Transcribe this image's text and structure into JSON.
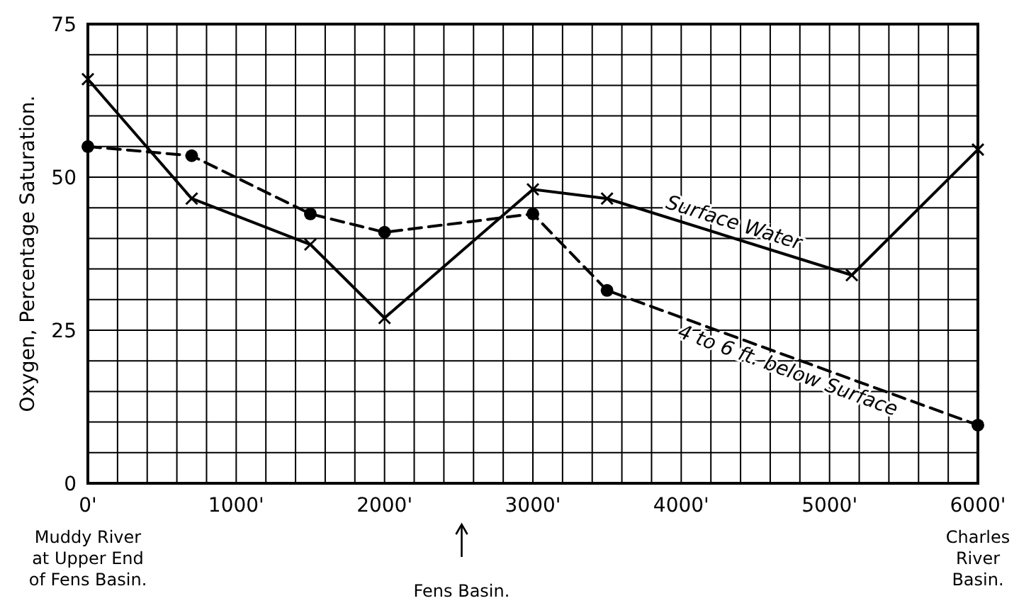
{
  "chart_data": {
    "type": "line",
    "ylabel": "Oxygen, Percentage Saturation.",
    "xlim": [
      0,
      6000
    ],
    "ylim": [
      0,
      75
    ],
    "xticks": [
      {
        "value": 0,
        "label": "0'"
      },
      {
        "value": 200,
        "label": null
      },
      {
        "value": 400,
        "label": null
      },
      {
        "value": 600,
        "label": null
      },
      {
        "value": 800,
        "label": null
      },
      {
        "value": 1000,
        "label": "1000'"
      },
      {
        "value": 1200,
        "label": null
      },
      {
        "value": 1400,
        "label": null
      },
      {
        "value": 1600,
        "label": null
      },
      {
        "value": 1800,
        "label": null
      },
      {
        "value": 2000,
        "label": "2000'"
      },
      {
        "value": 2200,
        "label": null
      },
      {
        "value": 2400,
        "label": null
      },
      {
        "value": 2600,
        "label": null
      },
      {
        "value": 2800,
        "label": null
      },
      {
        "value": 3000,
        "label": "3000'"
      },
      {
        "value": 3200,
        "label": null
      },
      {
        "value": 3400,
        "label": null
      },
      {
        "value": 3600,
        "label": null
      },
      {
        "value": 3800,
        "label": null
      },
      {
        "value": 4000,
        "label": "4000'"
      },
      {
        "value": 4200,
        "label": null
      },
      {
        "value": 4400,
        "label": null
      },
      {
        "value": 4600,
        "label": null
      },
      {
        "value": 4800,
        "label": null
      },
      {
        "value": 5000,
        "label": "5000'"
      },
      {
        "value": 5200,
        "label": null
      },
      {
        "value": 5400,
        "label": null
      },
      {
        "value": 5600,
        "label": null
      },
      {
        "value": 5800,
        "label": null
      },
      {
        "value": 6000,
        "label": "6000'"
      }
    ],
    "yticks": [
      0,
      {
        "value": 5,
        "label": null
      },
      {
        "value": 10,
        "label": null
      },
      {
        "value": 15,
        "label": null
      },
      {
        "value": 20,
        "label": null
      },
      25,
      {
        "value": 30,
        "label": null
      },
      {
        "value": 35,
        "label": null
      },
      {
        "value": 40,
        "label": null
      },
      {
        "value": 45,
        "label": null
      },
      50,
      {
        "value": 55,
        "label": null
      },
      {
        "value": 60,
        "label": null
      },
      {
        "value": 65,
        "label": null
      },
      {
        "value": 70,
        "label": null
      },
      75
    ],
    "grid": true,
    "series": [
      {
        "name": "Surface Water",
        "color": "#000000",
        "marker": "cross",
        "line_style": "solid",
        "x": [
          0,
          700,
          1500,
          2000,
          3000,
          3500,
          5150,
          6000
        ],
        "values": [
          66,
          46.5,
          39,
          27,
          48,
          46.5,
          34,
          54.5
        ]
      },
      {
        "name": "4 to 6 ft. below Surface",
        "color": "#000000",
        "marker": "circle",
        "line_style": "dashed",
        "x": [
          0,
          700,
          1500,
          2000,
          3000,
          3500,
          6000
        ],
        "values": [
          55,
          53.5,
          44,
          41,
          44,
          31.5,
          9.5
        ]
      }
    ],
    "annotations": [
      "Muddy River\nat Upper End\nof Fens Basin.",
      "Fens Basin.",
      "Charles\nRiver\nBasin."
    ]
  }
}
